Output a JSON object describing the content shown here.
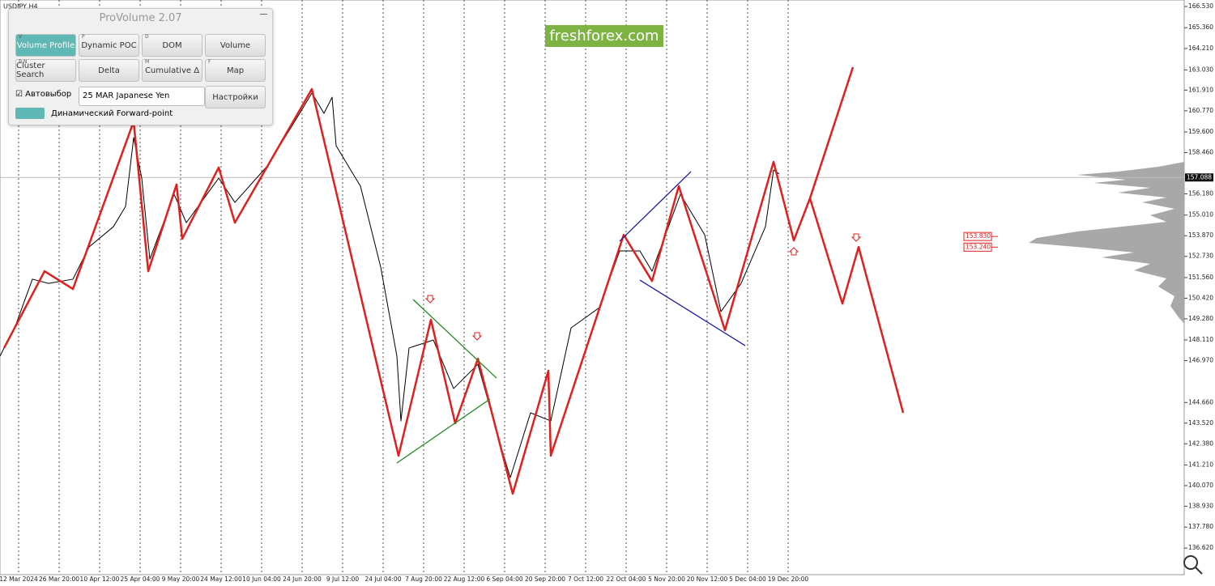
{
  "chart_data": {
    "type": "line",
    "symbol": "USDJPY,H4",
    "categories": [
      "12 Mar 2024",
      "26 Mar 20:00",
      "10 Apr 12:00",
      "25 Apr 04:00",
      "9 May 20:00",
      "24 May 12:00",
      "10 Jun 04:00",
      "24 Jun 20:00",
      "9 Jul 12:00",
      "24 Jul 04:00",
      "7 Aug 20:00",
      "22 Aug 12:00",
      "6 Sep 04:00",
      "20 Sep 20:00",
      "7 Oct 12:00",
      "22 Oct 04:00",
      "5 Nov 20:00",
      "20 Nov 12:00",
      "5 Dec 04:00",
      "19 Dec 20:00"
    ],
    "xlim": [
      -0.46,
      28.78
    ],
    "ylim": [
      135.15,
      166.89
    ],
    "yticks": [
      {
        "value": 166.53,
        "label": "166.530"
      },
      {
        "value": 165.36,
        "label": "165.360"
      },
      {
        "value": 164.21,
        "label": "164.210"
      },
      {
        "value": 163.03,
        "label": "163.030"
      },
      {
        "value": 161.91,
        "label": "161.910"
      },
      {
        "value": 160.77,
        "label": "160.770"
      },
      {
        "value": 159.6,
        "label": "159.600"
      },
      {
        "value": 158.46,
        "label": "158.460"
      },
      {
        "value": 156.18,
        "label": "156.180"
      },
      {
        "value": 155.01,
        "label": "155.010"
      },
      {
        "value": 153.87,
        "label": "153.870"
      },
      {
        "value": 152.73,
        "label": "152.730"
      },
      {
        "value": 151.56,
        "label": "151.560"
      },
      {
        "value": 150.42,
        "label": "150.420"
      },
      {
        "value": 149.28,
        "label": "149.280"
      },
      {
        "value": 148.11,
        "label": "148.110"
      },
      {
        "value": 146.97,
        "label": "146.970"
      },
      {
        "value": 144.66,
        "label": "144.660"
      },
      {
        "value": 143.52,
        "label": "143.520"
      },
      {
        "value": 142.38,
        "label": "142.380"
      },
      {
        "value": 141.21,
        "label": "141.210"
      },
      {
        "value": 140.07,
        "label": "140.070"
      },
      {
        "value": 138.93,
        "label": "138.930"
      },
      {
        "value": 137.78,
        "label": "137.780"
      },
      {
        "value": 136.62,
        "label": "136.620"
      }
    ],
    "current_price": 157.088,
    "levels": [
      {
        "value": 153.83,
        "label": "153.830"
      },
      {
        "value": 153.24,
        "label": "153.240"
      }
    ],
    "series": [
      {
        "color": "#000000",
        "line_width": 1,
        "x": [
          -0.46,
          -0.06,
          0.34,
          0.74,
          1.34,
          1.74,
          2.34,
          2.64,
          2.84,
          3.04,
          3.24,
          3.84,
          4.14,
          4.94,
          5.34,
          6.14,
          6.94,
          7.24,
          7.54,
          7.74,
          7.84,
          8.44,
          8.94,
          9.34,
          9.44,
          9.64,
          10.24,
          10.74,
          11.34,
          11.84,
          12.14,
          12.64,
          13.14,
          13.64,
          14.34,
          14.84,
          15.34,
          15.64,
          16.34,
          16.94,
          17.34,
          17.84,
          18.44,
          18.64,
          18.78
        ],
        "values": [
          147.22,
          149.01,
          151.47,
          151.24,
          151.47,
          153.25,
          154.37,
          155.49,
          159.29,
          157.05,
          152.58,
          156.16,
          154.59,
          157.05,
          155.71,
          157.72,
          160.63,
          161.75,
          160.63,
          161.52,
          158.84,
          156.61,
          152.14,
          147.22,
          143.64,
          147.67,
          148.11,
          145.43,
          146.77,
          142.75,
          140.51,
          144.09,
          143.64,
          148.78,
          149.9,
          153.03,
          153.03,
          151.91,
          156.16,
          153.92,
          149.68,
          151.24,
          154.37,
          157.5,
          157.28
        ]
      },
      {
        "color": "#e0201f",
        "line_width": 2.5,
        "x": [
          -0.36,
          0.64,
          1.34,
          2.84,
          3.2,
          3.9,
          4.04,
          4.94,
          5.34,
          7.24,
          9.38,
          10.18,
          10.78,
          11.34,
          12.2,
          13.08,
          13.14,
          14.94,
          15.64,
          16.3,
          17.44,
          18.64,
          19.14,
          19.54,
          20.34,
          20.74,
          21.84
        ],
        "values": [
          147.67,
          151.91,
          150.93,
          160.18,
          151.91,
          156.7,
          153.7,
          157.64,
          154.59,
          161.97,
          141.72,
          149.23,
          143.51,
          147.08,
          139.62,
          146.41,
          141.72,
          153.92,
          151.37,
          156.61,
          148.65,
          157.95,
          153.61,
          155.94,
          150.12,
          153.25,
          144.09
        ]
      },
      {
        "color": "#e0201f",
        "line_width": 2.5,
        "x": [
          19.54,
          20.6
        ],
        "values": [
          155.94,
          163.18
        ]
      },
      {
        "color": "#1f8a1f",
        "line_width": 1.3,
        "x": [
          9.74,
          11.8
        ],
        "values": [
          150.35,
          146.01
        ]
      },
      {
        "color": "#1f8a1f",
        "line_width": 1.3,
        "x": [
          9.34,
          11.64
        ],
        "values": [
          141.32,
          144.85
        ]
      },
      {
        "color": "#1a1aa8",
        "line_width": 1.3,
        "x": [
          14.84,
          16.6
        ],
        "values": [
          153.57,
          157.41
        ]
      },
      {
        "color": "#1a1aa8",
        "line_width": 1.3,
        "x": [
          15.34,
          17.94
        ],
        "values": [
          151.42,
          147.8
        ]
      }
    ]
  },
  "watermark": "freshforex.com",
  "panel": {
    "title": "ProVolume 2.07",
    "buttons": [
      {
        "label": "Volume Profile",
        "hotkey": "V"
      },
      {
        "label": "Dynamic POC",
        "hotkey": "P"
      },
      {
        "label": "DOM",
        "hotkey": "D"
      },
      {
        "label": "Volume"
      },
      {
        "label": "Cluster Search",
        "hotkey": "B N"
      },
      {
        "label": "Delta"
      },
      {
        "label": "Cumulative Δ",
        "hotkey": "M"
      },
      {
        "label": "Map",
        "hotkey": "F"
      }
    ],
    "checkbox": "Автовыбор",
    "dropdown": "25 MAR Japanese Yen",
    "settings": "Настройки",
    "toggle": "Динамический Forward-point"
  }
}
